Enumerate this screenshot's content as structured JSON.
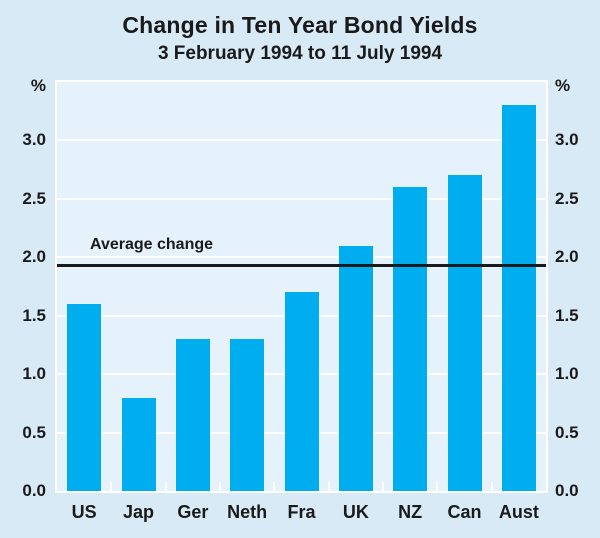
{
  "chart_data": {
    "type": "bar",
    "title": "Change in Ten Year Bond Yields",
    "subtitle": "3 February 1994 to 11 July 1994",
    "categories": [
      "US",
      "Jap",
      "Ger",
      "Neth",
      "Fra",
      "UK",
      "NZ",
      "Can",
      "Aust"
    ],
    "values": [
      1.6,
      0.8,
      1.3,
      1.3,
      1.7,
      2.1,
      2.6,
      2.7,
      3.3
    ],
    "unit_label_left": "%",
    "unit_label_right": "%",
    "ytick_labels": [
      "0.0",
      "0.5",
      "1.0",
      "1.5",
      "2.0",
      "2.5",
      "3.0"
    ],
    "ylim": [
      0,
      3.5
    ],
    "grid": "horizontal-white-lines",
    "legend": "none",
    "average_line": {
      "label": "Average change",
      "value": 1.93
    },
    "colors": {
      "bar": "#00adef",
      "background": "#d7eaf6",
      "plot_background": "#e6f2fb",
      "gridline": "#ffffff",
      "text": "#1a1a1a",
      "average_line": "#1a1a1a"
    }
  }
}
